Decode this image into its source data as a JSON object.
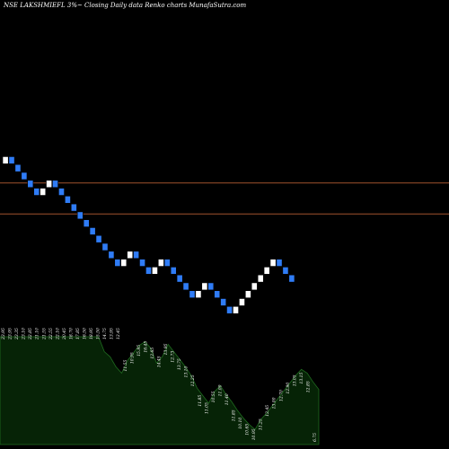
{
  "header": {
    "title": "NSE LAKSHMIEFL 3%~ Closing Daily data Renko charts MunafaSutra.com"
  },
  "chart_data": {
    "type": "renko",
    "title": "NSE LAKSHMIEFL 3%~ Closing Daily data Renko charts MunafaSutra.com",
    "colors": {
      "background": "#000000",
      "up_brick": "#ffffff",
      "down_brick": "#2f7cf6",
      "reference_line": "#a0522d",
      "volume_fill": "#062306",
      "volume_stroke": "#1f6b1f"
    },
    "reference_lines": [
      22.85,
      19.9
    ],
    "y_range": [
      9.5,
      30.0
    ],
    "bricks": [
      {
        "dir": "up",
        "price": 25.35
      },
      {
        "dir": "down",
        "price": 24.6
      },
      {
        "dir": "down",
        "price": 23.85
      },
      {
        "dir": "down",
        "price": 23.1
      },
      {
        "dir": "down",
        "price": 22.35
      },
      {
        "dir": "down",
        "price": 21.6
      },
      {
        "dir": "up",
        "price": 22.35
      },
      {
        "dir": "up",
        "price": 23.1
      },
      {
        "dir": "down",
        "price": 22.35
      },
      {
        "dir": "down",
        "price": 21.6
      },
      {
        "dir": "down",
        "price": 20.85
      },
      {
        "dir": "down",
        "price": 20.1
      },
      {
        "dir": "down",
        "price": 19.35
      },
      {
        "dir": "down",
        "price": 18.6
      },
      {
        "dir": "down",
        "price": 17.85
      },
      {
        "dir": "down",
        "price": 17.1
      },
      {
        "dir": "down",
        "price": 16.35
      },
      {
        "dir": "down",
        "price": 15.6
      },
      {
        "dir": "down",
        "price": 14.85
      },
      {
        "dir": "up",
        "price": 15.6
      },
      {
        "dir": "up",
        "price": 16.35
      },
      {
        "dir": "down",
        "price": 15.6
      },
      {
        "dir": "down",
        "price": 14.85
      },
      {
        "dir": "down",
        "price": 14.1
      },
      {
        "dir": "up",
        "price": 14.85
      },
      {
        "dir": "up",
        "price": 15.6
      },
      {
        "dir": "down",
        "price": 14.85
      },
      {
        "dir": "down",
        "price": 14.1
      },
      {
        "dir": "down",
        "price": 13.35
      },
      {
        "dir": "down",
        "price": 12.6
      },
      {
        "dir": "down",
        "price": 11.85
      },
      {
        "dir": "up",
        "price": 12.6
      },
      {
        "dir": "up",
        "price": 13.35
      },
      {
        "dir": "down",
        "price": 12.6
      },
      {
        "dir": "down",
        "price": 11.85
      },
      {
        "dir": "down",
        "price": 11.1
      },
      {
        "dir": "down",
        "price": 10.35
      },
      {
        "dir": "up",
        "price": 11.1
      },
      {
        "dir": "up",
        "price": 11.85
      },
      {
        "dir": "up",
        "price": 12.6
      },
      {
        "dir": "up",
        "price": 13.35
      },
      {
        "dir": "up",
        "price": 14.1
      },
      {
        "dir": "up",
        "price": 14.85
      },
      {
        "dir": "up",
        "price": 15.6
      },
      {
        "dir": "down",
        "price": 14.85
      },
      {
        "dir": "down",
        "price": 14.1
      },
      {
        "dir": "down",
        "price": 13.35
      }
    ],
    "price_labels": [
      "23.95",
      "23.95",
      "23.35",
      "23.10",
      "22.85",
      "21.10",
      "21.55",
      "22.55",
      "22.10",
      "20.45",
      "18.70",
      "17.85",
      "16.50",
      "18.95",
      "15.50",
      "14.75",
      "13.95",
      "12.45",
      "11.55",
      "10.95",
      "15.95",
      "16.45",
      "12.65",
      "14.45",
      "13.95",
      "12.73",
      "13.75",
      "13.10",
      "12.25",
      "11.85",
      "11.05",
      "10.55",
      "11.00",
      "11.40",
      "11.85",
      "10.10",
      "10.65",
      "10.95",
      "11.25",
      "12.45",
      "13.00",
      "12.70",
      "12.90",
      "13.05",
      "13.15",
      "12.85",
      "6.75"
    ],
    "volume": [
      0.86,
      0.86,
      0.86,
      0.86,
      0.86,
      0.86,
      0.86,
      0.86,
      0.86,
      0.86,
      0.86,
      0.86,
      0.86,
      0.86,
      0.86,
      0.86,
      0.86,
      0.86,
      0.74,
      0.7,
      0.62,
      0.57,
      0.67,
      0.73,
      0.79,
      0.82,
      0.77,
      0.65,
      0.7,
      0.8,
      0.74,
      0.68,
      0.62,
      0.55,
      0.45,
      0.39,
      0.33,
      0.42,
      0.47,
      0.4,
      0.34,
      0.27,
      0.21,
      0.16,
      0.12,
      0.2,
      0.25,
      0.31,
      0.37,
      0.43,
      0.49,
      0.55,
      0.6,
      0.57,
      0.5,
      0.44
    ]
  }
}
